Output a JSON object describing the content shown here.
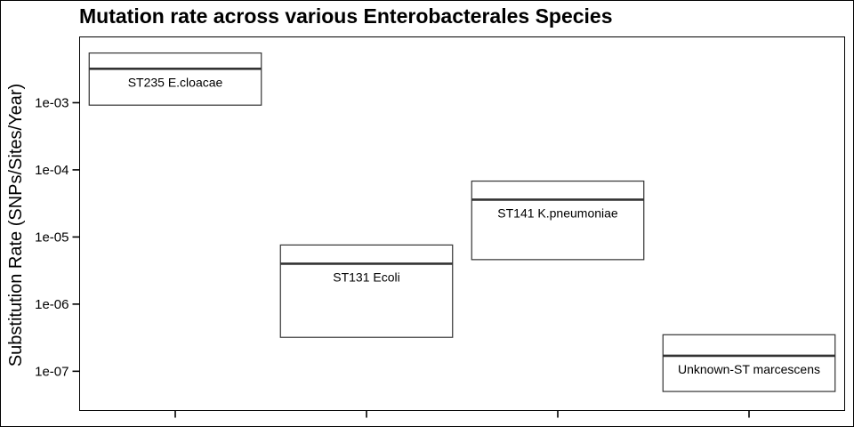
{
  "chart_data": {
    "type": "boxplot",
    "title": "Mutation rate across various Enterobacterales Species",
    "xlabel": "",
    "ylabel": "Substitution Rate (SNPs/Sites/Year)",
    "y_scale": "log10",
    "ylim": [
      2.6e-08,
      0.00955
    ],
    "y_ticks": [
      {
        "value": 0.001,
        "label": "1e-03"
      },
      {
        "value": 0.0001,
        "label": "1e-04"
      },
      {
        "value": 1e-05,
        "label": "1e-05"
      },
      {
        "value": 1e-06,
        "label": "1e-06"
      },
      {
        "value": 1e-07,
        "label": "1e-07"
      }
    ],
    "legend": "none",
    "grid": false,
    "categories": [
      "ST235 E.cloacae",
      "ST131 Ecoli",
      "ST141 K.pneumoniae",
      "Unknown-ST marcescens"
    ],
    "boxes": [
      {
        "label": "ST235 E.cloacae",
        "lower": 0.00092,
        "median": 0.0032,
        "upper": 0.0055
      },
      {
        "label": "ST131 Ecoli",
        "lower": 3.2e-07,
        "median": 4e-06,
        "upper": 7.6e-06
      },
      {
        "label": "ST141 K.pneumoniae",
        "lower": 4.6e-06,
        "median": 3.6e-05,
        "upper": 6.8e-05
      },
      {
        "label": "Unknown-ST marcescens",
        "lower": 5e-08,
        "median": 1.7e-07,
        "upper": 3.5e-07
      }
    ]
  }
}
